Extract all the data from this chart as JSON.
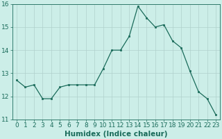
{
  "x": [
    0,
    1,
    2,
    3,
    4,
    5,
    6,
    7,
    8,
    9,
    10,
    11,
    12,
    13,
    14,
    15,
    16,
    17,
    18,
    19,
    20,
    21,
    22,
    23
  ],
  "y": [
    12.7,
    12.4,
    12.5,
    11.9,
    11.9,
    12.4,
    12.5,
    12.5,
    12.5,
    12.5,
    13.2,
    14.0,
    14.0,
    14.6,
    15.9,
    15.4,
    15.0,
    15.1,
    14.4,
    14.1,
    13.1,
    12.2,
    11.9,
    11.2
  ],
  "line_color": "#1a6b5a",
  "marker_color": "#1a6b5a",
  "bg_color": "#cceee8",
  "grid_color": "#b0d0cc",
  "xlabel": "Humidex (Indice chaleur)",
  "ylim": [
    11,
    16
  ],
  "xlim_min": -0.5,
  "xlim_max": 23.5,
  "yticks": [
    11,
    12,
    13,
    14,
    15,
    16
  ],
  "xticks": [
    0,
    1,
    2,
    3,
    4,
    5,
    6,
    7,
    8,
    9,
    10,
    11,
    12,
    13,
    14,
    15,
    16,
    17,
    18,
    19,
    20,
    21,
    22,
    23
  ],
  "tick_color": "#1a6b5a",
  "font_size": 6.5,
  "xlabel_fontsize": 7.5
}
